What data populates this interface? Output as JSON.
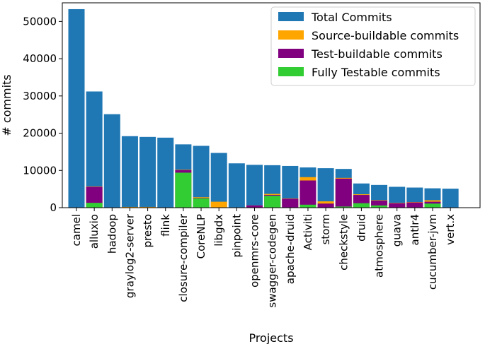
{
  "chart_data": {
    "type": "bar",
    "stacking": "overlaid",
    "title": "",
    "xlabel": "Projects",
    "ylabel": "# commits",
    "ylim": [
      0,
      55000
    ],
    "yticks": [
      0,
      10000,
      20000,
      30000,
      40000,
      50000
    ],
    "legend_position": "top-right",
    "categories": [
      "camel",
      "alluxio",
      "hadoop",
      "graylog2-server",
      "presto",
      "flink",
      "closure-compiler",
      "CoreNLP",
      "libgdx",
      "pinpoint",
      "openmrs-core",
      "swagger-codegen",
      "apache-druid",
      "Activiti",
      "storm",
      "checkstyle",
      "druid",
      "atmosphere",
      "guava",
      "antlr4",
      "cucumber-jvm",
      "vert.x"
    ],
    "series": [
      {
        "name": "Total Commits",
        "color": "#1f77b4",
        "values": [
          53300,
          31200,
          25100,
          19200,
          19000,
          18800,
          17000,
          16600,
          14700,
          11900,
          11500,
          11400,
          11200,
          10800,
          10600,
          10400,
          6500,
          6100,
          5600,
          5400,
          5200,
          5100
        ]
      },
      {
        "name": "Source-buildable commits",
        "color": "#ffa500",
        "values": [
          0,
          5700,
          0,
          200,
          200,
          0,
          10200,
          2800,
          1600,
          0,
          600,
          3700,
          2500,
          8200,
          1700,
          8000,
          3600,
          2000,
          1300,
          1500,
          2000,
          0
        ]
      },
      {
        "name": "Test-buildable commits",
        "color": "#800080",
        "values": [
          0,
          5600,
          0,
          0,
          0,
          0,
          10100,
          2600,
          0,
          0,
          600,
          3400,
          2400,
          7300,
          1100,
          7800,
          3400,
          1900,
          1200,
          1400,
          1600,
          0
        ]
      },
      {
        "name": "Fully Testable commits",
        "color": "#32cd32",
        "values": [
          0,
          1300,
          0,
          0,
          0,
          0,
          9400,
          2500,
          0,
          0,
          0,
          3200,
          0,
          800,
          0,
          300,
          1200,
          600,
          0,
          0,
          1100,
          0
        ]
      }
    ]
  }
}
